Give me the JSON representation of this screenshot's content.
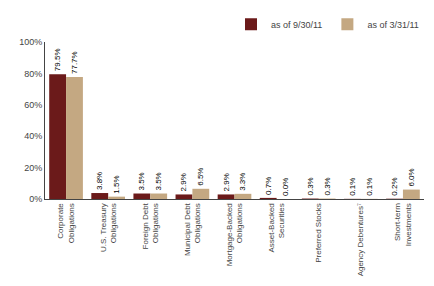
{
  "chart_data": {
    "type": "bar",
    "categories": [
      "Corporate\nObligations",
      "U.S. Treasury\nObligations",
      "Foreign Debt\nObligations",
      "Municipal Debt\nObligations",
      "Mortgage-Backed\nObligations",
      "Asset-Backed\nSecurities",
      "Preferred Stocks",
      "Agency Debentures⁷",
      "Short-term\nInvestments"
    ],
    "series": [
      {
        "name": "as of 9/30/11",
        "color": "#6B1A1A",
        "values": [
          79.5,
          3.8,
          3.5,
          2.9,
          2.9,
          0.7,
          0.3,
          0.1,
          0.2
        ],
        "value_labels": [
          "79.5%",
          "3.8%",
          "3.5%",
          "2.9%",
          "2.9%",
          "0.7%",
          "0.3%",
          "0.1%",
          "0.2%"
        ]
      },
      {
        "name": "as of 3/31/11",
        "color": "#C4A882",
        "values": [
          77.7,
          1.5,
          3.5,
          6.5,
          3.3,
          0.0,
          0.3,
          0.1,
          6.0
        ],
        "value_labels": [
          "77.7%",
          "1.5%",
          "3.5%",
          "6.5%",
          "3.3%",
          "0.0%",
          "0.3%",
          "0.1%",
          "6.0%"
        ]
      }
    ],
    "ylim": [
      0,
      100
    ],
    "yticks": [
      {
        "value": 0,
        "label": "0%"
      },
      {
        "value": 20,
        "label": "20%"
      },
      {
        "value": 40,
        "label": "40%"
      },
      {
        "value": 60,
        "label": "60%"
      },
      {
        "value": 80,
        "label": "80%"
      },
      {
        "value": 100,
        "label": "100%"
      }
    ],
    "data_labels": true,
    "grid": false,
    "legend": "upper right"
  }
}
